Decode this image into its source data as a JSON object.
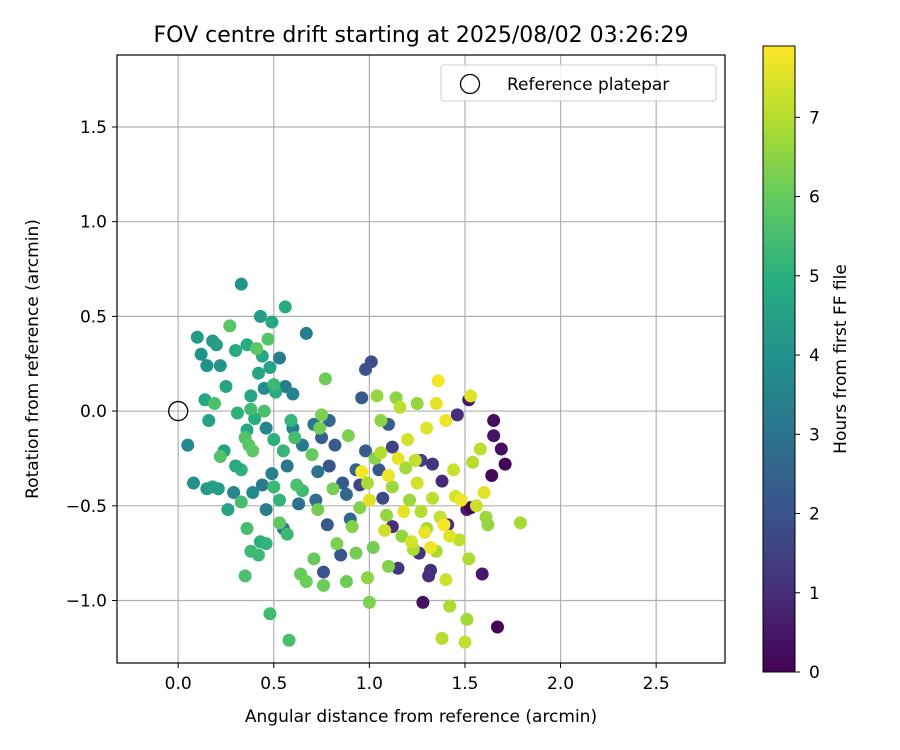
{
  "chart_data": {
    "type": "scatter",
    "title": "FOV centre drift starting at 2025/08/02 03:26:29",
    "xlabel": "Angular distance from reference (arcmin)",
    "ylabel": "Rotation from reference (arcmin)",
    "colorbar_label": "Hours from first FF file",
    "colormap": "viridis",
    "xlim": [
      -0.32,
      2.86
    ],
    "ylim": [
      -1.33,
      1.88
    ],
    "color_range": [
      0,
      7.9
    ],
    "x_ticks": [
      0.0,
      0.5,
      1.0,
      1.5,
      2.0,
      2.5
    ],
    "x_tick_labels": [
      "0.0",
      "0.5",
      "1.0",
      "1.5",
      "2.0",
      "2.5"
    ],
    "y_ticks": [
      -1.0,
      -0.5,
      0.0,
      0.5,
      1.0,
      1.5
    ],
    "y_tick_labels": [
      "−1.0",
      "−0.5",
      "0.0",
      "0.5",
      "1.0",
      "1.5"
    ],
    "colorbar_ticks": [
      0,
      1,
      2,
      3,
      4,
      5,
      6,
      7
    ],
    "colorbar_tick_labels": [
      "0",
      "1",
      "2",
      "3",
      "4",
      "5",
      "6",
      "7"
    ],
    "grid": true,
    "legend": {
      "position": "top-right",
      "entries": [
        "Reference platepar"
      ]
    },
    "reference_point": {
      "label": "Reference platepar",
      "x": 0.0,
      "y": 0.0,
      "marker": "open-circle"
    },
    "points": [
      {
        "x": 1.67,
        "y": -1.14,
        "h": 0.1
      },
      {
        "x": 1.28,
        "y": -1.01,
        "h": 0.3
      },
      {
        "x": 1.59,
        "y": -0.86,
        "h": 0.5
      },
      {
        "x": 1.64,
        "y": -0.34,
        "h": 0.2
      },
      {
        "x": 1.69,
        "y": -0.2,
        "h": 0.3
      },
      {
        "x": 1.71,
        "y": -0.28,
        "h": 0.1
      },
      {
        "x": 1.65,
        "y": -0.13,
        "h": 0.4
      },
      {
        "x": 1.65,
        "y": -0.05,
        "h": 0.3
      },
      {
        "x": 1.52,
        "y": 0.06,
        "h": 0.5
      },
      {
        "x": 1.51,
        "y": -0.52,
        "h": 0.6
      },
      {
        "x": 1.53,
        "y": -0.51,
        "h": 0.1
      },
      {
        "x": 1.31,
        "y": -0.87,
        "h": 1.0
      },
      {
        "x": 1.32,
        "y": -0.84,
        "h": 1.1
      },
      {
        "x": 1.46,
        "y": -0.02,
        "h": 1.0
      },
      {
        "x": 1.38,
        "y": -0.37,
        "h": 0.9
      },
      {
        "x": 1.41,
        "y": -0.6,
        "h": 1.1
      },
      {
        "x": 1.27,
        "y": -0.26,
        "h": 1.5
      },
      {
        "x": 1.33,
        "y": -0.28,
        "h": 1.2
      },
      {
        "x": 1.12,
        "y": -0.61,
        "h": 1.0
      },
      {
        "x": 1.15,
        "y": -0.83,
        "h": 1.3
      },
      {
        "x": 1.26,
        "y": -0.75,
        "h": 1.1
      },
      {
        "x": 1.01,
        "y": 0.26,
        "h": 1.9
      },
      {
        "x": 0.98,
        "y": 0.22,
        "h": 2.0
      },
      {
        "x": 0.96,
        "y": 0.07,
        "h": 2.2
      },
      {
        "x": 1.07,
        "y": -0.46,
        "h": 1.8
      },
      {
        "x": 1.05,
        "y": -0.31,
        "h": 2.1
      },
      {
        "x": 1.12,
        "y": -0.19,
        "h": 1.6
      },
      {
        "x": 1.1,
        "y": -0.07,
        "h": 2.4
      },
      {
        "x": 0.98,
        "y": -0.21,
        "h": 2.3
      },
      {
        "x": 0.95,
        "y": -0.39,
        "h": 1.7
      },
      {
        "x": 0.88,
        "y": -0.44,
        "h": 2.6
      },
      {
        "x": 0.93,
        "y": -0.31,
        "h": 2.5
      },
      {
        "x": 0.86,
        "y": -0.38,
        "h": 2.2
      },
      {
        "x": 0.82,
        "y": -0.18,
        "h": 2.3
      },
      {
        "x": 0.79,
        "y": -0.05,
        "h": 2.7
      },
      {
        "x": 0.75,
        "y": -0.14,
        "h": 2.4
      },
      {
        "x": 0.78,
        "y": -0.6,
        "h": 2.2
      },
      {
        "x": 0.85,
        "y": -0.76,
        "h": 2.1
      },
      {
        "x": 0.76,
        "y": -0.85,
        "h": 2.0
      },
      {
        "x": 0.9,
        "y": -0.57,
        "h": 2.6
      },
      {
        "x": 0.72,
        "y": -0.47,
        "h": 2.8
      },
      {
        "x": 0.73,
        "y": -0.32,
        "h": 3.0
      },
      {
        "x": 0.79,
        "y": -0.29,
        "h": 2.1
      },
      {
        "x": 0.71,
        "y": -0.07,
        "h": 3.1
      },
      {
        "x": 0.67,
        "y": 0.41,
        "h": 3.3
      },
      {
        "x": 0.63,
        "y": -0.49,
        "h": 2.9
      },
      {
        "x": 0.65,
        "y": -0.18,
        "h": 3.2
      },
      {
        "x": 0.6,
        "y": -0.09,
        "h": 3.4
      },
      {
        "x": 0.55,
        "y": -0.62,
        "h": 3.0
      },
      {
        "x": 0.57,
        "y": -0.29,
        "h": 3.1
      },
      {
        "x": 0.56,
        "y": 0.13,
        "h": 3.3
      },
      {
        "x": 0.6,
        "y": 0.09,
        "h": 3.5
      },
      {
        "x": 0.53,
        "y": 0.28,
        "h": 3.3
      },
      {
        "x": 0.46,
        "y": -0.52,
        "h": 3.3
      },
      {
        "x": 0.49,
        "y": -0.33,
        "h": 3.5
      },
      {
        "x": 0.44,
        "y": -0.39,
        "h": 3.2
      },
      {
        "x": 0.39,
        "y": -0.43,
        "h": 3.7
      },
      {
        "x": 0.45,
        "y": 0.12,
        "h": 3.8
      },
      {
        "x": 0.46,
        "y": -0.09,
        "h": 3.6
      },
      {
        "x": 0.29,
        "y": -0.43,
        "h": 3.6
      },
      {
        "x": 0.05,
        "y": -0.18,
        "h": 3.7
      },
      {
        "x": 0.08,
        "y": -0.38,
        "h": 4.0
      },
      {
        "x": 0.12,
        "y": 0.3,
        "h": 4.1
      },
      {
        "x": 0.1,
        "y": 0.39,
        "h": 4.3
      },
      {
        "x": 0.15,
        "y": 0.24,
        "h": 4.0
      },
      {
        "x": 0.18,
        "y": 0.37,
        "h": 4.2
      },
      {
        "x": 0.2,
        "y": 0.35,
        "h": 4.4
      },
      {
        "x": 0.16,
        "y": -0.05,
        "h": 4.5
      },
      {
        "x": 0.22,
        "y": 0.24,
        "h": 4.1
      },
      {
        "x": 0.25,
        "y": 0.13,
        "h": 4.6
      },
      {
        "x": 0.18,
        "y": -0.4,
        "h": 4.5
      },
      {
        "x": 0.15,
        "y": -0.41,
        "h": 4.3
      },
      {
        "x": 0.21,
        "y": -0.41,
        "h": 4.4
      },
      {
        "x": 0.14,
        "y": 0.06,
        "h": 4.7
      },
      {
        "x": 0.26,
        "y": -0.52,
        "h": 4.6
      },
      {
        "x": 0.24,
        "y": -0.21,
        "h": 4.5
      },
      {
        "x": 0.33,
        "y": 0.67,
        "h": 4.1
      },
      {
        "x": 0.3,
        "y": 0.32,
        "h": 4.8
      },
      {
        "x": 0.36,
        "y": 0.35,
        "h": 4.9
      },
      {
        "x": 0.43,
        "y": 0.5,
        "h": 4.4
      },
      {
        "x": 0.49,
        "y": 0.47,
        "h": 4.7
      },
      {
        "x": 0.56,
        "y": 0.55,
        "h": 4.8
      },
      {
        "x": 0.38,
        "y": 0.08,
        "h": 4.6
      },
      {
        "x": 0.4,
        "y": -0.04,
        "h": 4.9
      },
      {
        "x": 0.36,
        "y": -0.1,
        "h": 4.7
      },
      {
        "x": 0.31,
        "y": -0.01,
        "h": 5.0
      },
      {
        "x": 0.33,
        "y": -0.31,
        "h": 5.1
      },
      {
        "x": 0.3,
        "y": -0.29,
        "h": 4.8
      },
      {
        "x": 0.42,
        "y": 0.2,
        "h": 4.6
      },
      {
        "x": 0.44,
        "y": 0.29,
        "h": 4.8
      },
      {
        "x": 0.48,
        "y": 0.23,
        "h": 4.5
      },
      {
        "x": 0.51,
        "y": 0.1,
        "h": 4.9
      },
      {
        "x": 0.5,
        "y": -0.15,
        "h": 5.0
      },
      {
        "x": 0.55,
        "y": -0.21,
        "h": 5.2
      },
      {
        "x": 0.53,
        "y": -0.47,
        "h": 5.2
      },
      {
        "x": 0.5,
        "y": -0.4,
        "h": 5.3
      },
      {
        "x": 0.43,
        "y": -0.69,
        "h": 5.0
      },
      {
        "x": 0.42,
        "y": -0.76,
        "h": 5.3
      },
      {
        "x": 0.38,
        "y": -0.74,
        "h": 5.4
      },
      {
        "x": 0.46,
        "y": -0.7,
        "h": 5.1
      },
      {
        "x": 0.48,
        "y": -1.07,
        "h": 5.4
      },
      {
        "x": 0.58,
        "y": -1.21,
        "h": 5.5
      },
      {
        "x": 0.57,
        "y": -0.65,
        "h": 5.3
      },
      {
        "x": 0.65,
        "y": -0.42,
        "h": 5.4
      },
      {
        "x": 0.62,
        "y": -0.39,
        "h": 5.6
      },
      {
        "x": 0.61,
        "y": -0.14,
        "h": 5.5
      },
      {
        "x": 0.59,
        "y": -0.05,
        "h": 5.2
      },
      {
        "x": 0.5,
        "y": 0.14,
        "h": 5.3
      },
      {
        "x": 0.45,
        "y": 0.0,
        "h": 5.6
      },
      {
        "x": 0.38,
        "y": 0.01,
        "h": 5.4
      },
      {
        "x": 0.35,
        "y": -0.14,
        "h": 5.7
      },
      {
        "x": 0.33,
        "y": -0.48,
        "h": 5.5
      },
      {
        "x": 0.35,
        "y": -0.87,
        "h": 5.6
      },
      {
        "x": 0.36,
        "y": -0.62,
        "h": 5.5
      },
      {
        "x": 0.37,
        "y": -0.18,
        "h": 5.8
      },
      {
        "x": 0.39,
        "y": -0.21,
        "h": 5.9
      },
      {
        "x": 0.27,
        "y": 0.45,
        "h": 5.8
      },
      {
        "x": 0.22,
        "y": -0.24,
        "h": 5.7
      },
      {
        "x": 0.19,
        "y": 0.04,
        "h": 5.6
      },
      {
        "x": 0.41,
        "y": 0.33,
        "h": 5.9
      },
      {
        "x": 0.47,
        "y": 0.38,
        "h": 5.7
      },
      {
        "x": 0.53,
        "y": -0.59,
        "h": 5.9
      },
      {
        "x": 0.64,
        "y": -0.86,
        "h": 6.0
      },
      {
        "x": 0.67,
        "y": -0.9,
        "h": 6.1
      },
      {
        "x": 0.71,
        "y": -0.78,
        "h": 6.0
      },
      {
        "x": 0.76,
        "y": -0.92,
        "h": 6.1
      },
      {
        "x": 0.73,
        "y": -0.52,
        "h": 6.2
      },
      {
        "x": 0.7,
        "y": -0.23,
        "h": 6.0
      },
      {
        "x": 0.74,
        "y": -0.09,
        "h": 6.2
      },
      {
        "x": 0.75,
        "y": -0.02,
        "h": 6.3
      },
      {
        "x": 0.77,
        "y": 0.17,
        "h": 6.1
      },
      {
        "x": 0.81,
        "y": -0.41,
        "h": 6.2
      },
      {
        "x": 0.83,
        "y": -0.7,
        "h": 6.3
      },
      {
        "x": 0.88,
        "y": -0.9,
        "h": 6.1
      },
      {
        "x": 0.91,
        "y": -0.61,
        "h": 6.4
      },
      {
        "x": 0.93,
        "y": -0.75,
        "h": 6.2
      },
      {
        "x": 0.89,
        "y": -0.13,
        "h": 6.3
      },
      {
        "x": 0.95,
        "y": -0.51,
        "h": 6.4
      },
      {
        "x": 1.0,
        "y": -1.01,
        "h": 6.3
      },
      {
        "x": 0.99,
        "y": -0.88,
        "h": 6.5
      },
      {
        "x": 1.02,
        "y": -0.72,
        "h": 6.2
      },
      {
        "x": 1.03,
        "y": -0.25,
        "h": 6.4
      },
      {
        "x": 1.04,
        "y": 0.08,
        "h": 6.6
      },
      {
        "x": 1.06,
        "y": -0.05,
        "h": 6.5
      },
      {
        "x": 1.09,
        "y": -0.55,
        "h": 6.6
      },
      {
        "x": 1.1,
        "y": -0.82,
        "h": 6.4
      },
      {
        "x": 1.12,
        "y": -0.4,
        "h": 6.7
      },
      {
        "x": 1.14,
        "y": 0.07,
        "h": 6.5
      },
      {
        "x": 1.17,
        "y": -0.66,
        "h": 6.6
      },
      {
        "x": 1.19,
        "y": -0.3,
        "h": 6.8
      },
      {
        "x": 1.21,
        "y": -0.47,
        "h": 6.7
      },
      {
        "x": 1.23,
        "y": -0.73,
        "h": 6.9
      },
      {
        "x": 1.25,
        "y": 0.04,
        "h": 6.6
      },
      {
        "x": 1.27,
        "y": -0.53,
        "h": 7.0
      },
      {
        "x": 1.3,
        "y": -0.62,
        "h": 6.8
      },
      {
        "x": 1.33,
        "y": -0.46,
        "h": 7.1
      },
      {
        "x": 1.35,
        "y": -0.74,
        "h": 6.9
      },
      {
        "x": 1.37,
        "y": -0.56,
        "h": 7.2
      },
      {
        "x": 1.38,
        "y": -1.2,
        "h": 7.0
      },
      {
        "x": 1.42,
        "y": -1.03,
        "h": 6.9
      },
      {
        "x": 1.4,
        "y": -0.89,
        "h": 7.3
      },
      {
        "x": 1.45,
        "y": -0.45,
        "h": 7.4
      },
      {
        "x": 1.47,
        "y": -0.68,
        "h": 7.1
      },
      {
        "x": 1.5,
        "y": -1.22,
        "h": 7.2
      },
      {
        "x": 1.51,
        "y": -1.1,
        "h": 6.8
      },
      {
        "x": 1.52,
        "y": -0.78,
        "h": 6.9
      },
      {
        "x": 1.54,
        "y": -0.27,
        "h": 7.0
      },
      {
        "x": 1.56,
        "y": -0.5,
        "h": 7.3
      },
      {
        "x": 1.58,
        "y": -0.2,
        "h": 7.1
      },
      {
        "x": 1.6,
        "y": -0.43,
        "h": 7.6
      },
      {
        "x": 1.61,
        "y": -0.56,
        "h": 6.7
      },
      {
        "x": 1.62,
        "y": -0.6,
        "h": 6.6
      },
      {
        "x": 1.79,
        "y": -0.59,
        "h": 6.8
      },
      {
        "x": 1.53,
        "y": 0.08,
        "h": 7.5
      },
      {
        "x": 1.36,
        "y": 0.16,
        "h": 7.8
      },
      {
        "x": 1.35,
        "y": 0.04,
        "h": 7.6
      },
      {
        "x": 1.4,
        "y": -0.05,
        "h": 7.7
      },
      {
        "x": 1.3,
        "y": -0.09,
        "h": 7.5
      },
      {
        "x": 1.2,
        "y": -0.15,
        "h": 7.4
      },
      {
        "x": 1.15,
        "y": -0.25,
        "h": 7.6
      },
      {
        "x": 1.1,
        "y": -0.34,
        "h": 7.7
      },
      {
        "x": 1.0,
        "y": -0.47,
        "h": 7.5
      },
      {
        "x": 0.96,
        "y": -0.32,
        "h": 7.8
      },
      {
        "x": 1.08,
        "y": -0.63,
        "h": 7.3
      },
      {
        "x": 1.18,
        "y": -0.53,
        "h": 7.6
      },
      {
        "x": 1.25,
        "y": -0.38,
        "h": 7.4
      },
      {
        "x": 1.32,
        "y": -0.72,
        "h": 7.7
      },
      {
        "x": 1.39,
        "y": -0.6,
        "h": 7.8
      },
      {
        "x": 1.42,
        "y": -0.66,
        "h": 7.5
      },
      {
        "x": 1.29,
        "y": -0.64,
        "h": 7.6
      },
      {
        "x": 1.22,
        "y": -0.69,
        "h": 7.4
      },
      {
        "x": 1.48,
        "y": -0.47,
        "h": 7.7
      },
      {
        "x": 1.44,
        "y": -0.31,
        "h": 7.3
      },
      {
        "x": 1.24,
        "y": -0.26,
        "h": 7.2
      },
      {
        "x": 1.16,
        "y": 0.02,
        "h": 7.1
      },
      {
        "x": 1.06,
        "y": -0.22,
        "h": 7.0
      },
      {
        "x": 0.99,
        "y": -0.38,
        "h": 6.9
      }
    ]
  }
}
